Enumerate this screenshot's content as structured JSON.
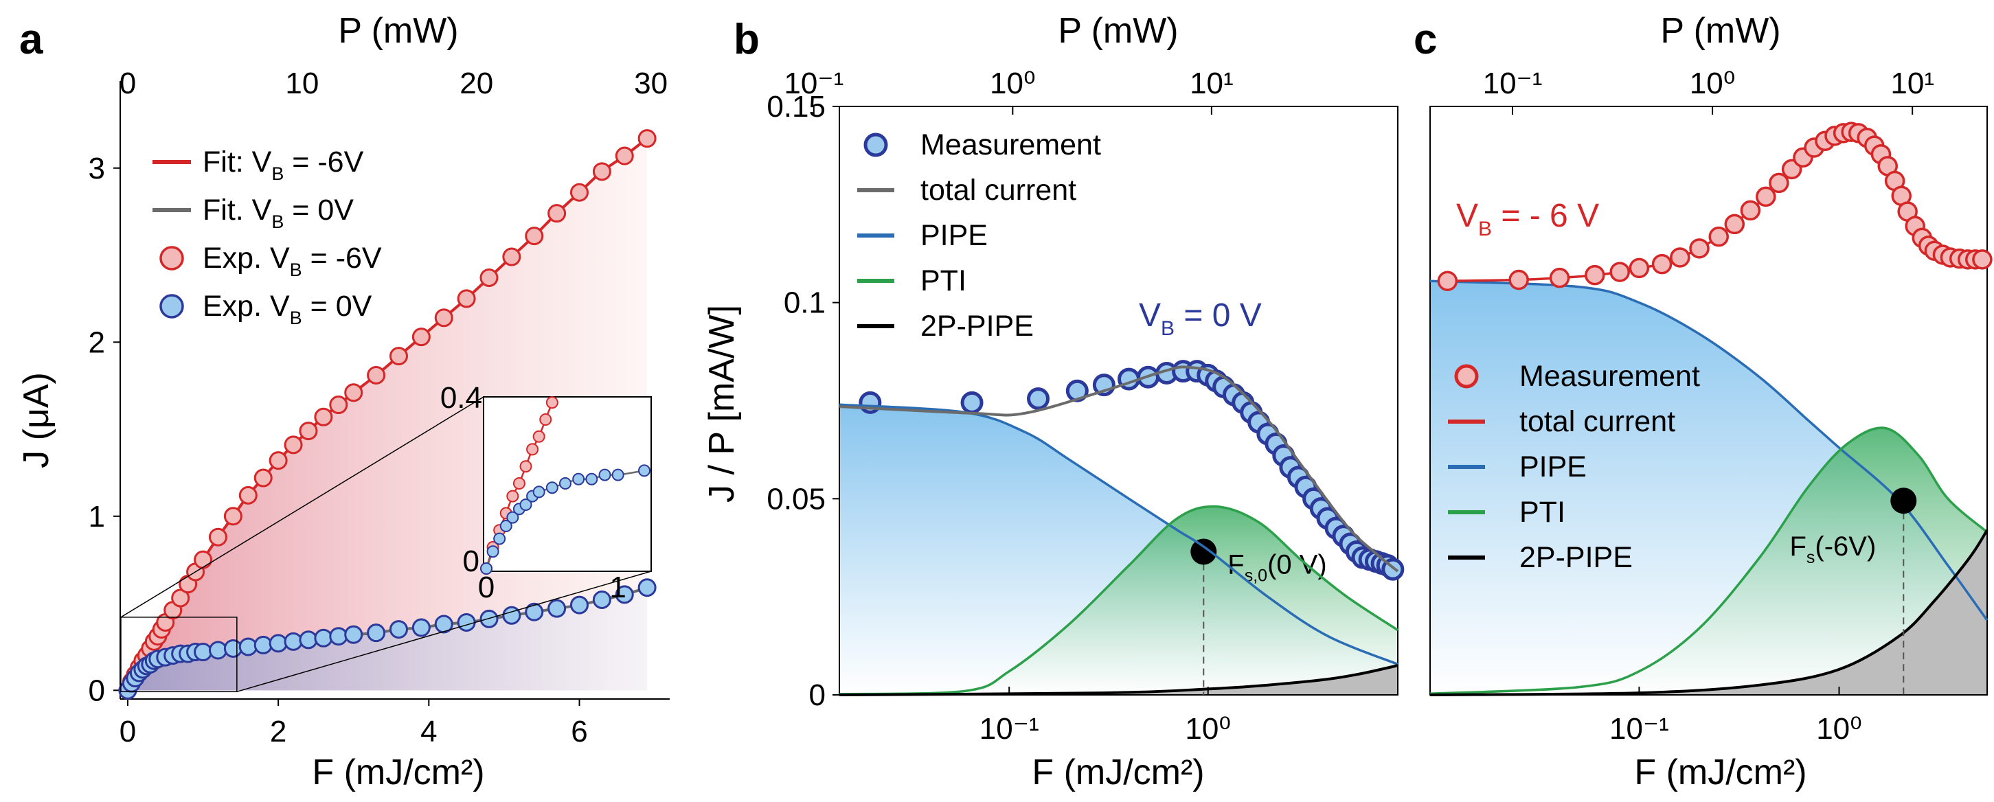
{
  "figure": {
    "panel_letters": [
      "a",
      "b",
      "c"
    ]
  },
  "chart_data": [
    {
      "panel": "a",
      "type": "scatter",
      "xlabel": "F (mJ/cm²)",
      "x2label": "P (mW)",
      "ylabel": "J (μA)",
      "xlim": [
        -0.1,
        7.2
      ],
      "ylim": [
        -0.05,
        3.5
      ],
      "x2lim": [
        0,
        30
      ],
      "x_ticks": [
        0,
        2,
        4,
        6
      ],
      "x_tick_labels": [
        "0",
        "2",
        "4",
        "6"
      ],
      "y_ticks": [
        0,
        1,
        2,
        3
      ],
      "y_tick_labels": [
        "0",
        "1",
        "2",
        "3"
      ],
      "x2_ticks": [
        0,
        10,
        20,
        30
      ],
      "x2_tick_labels": [
        "0",
        "10",
        "20",
        "30"
      ],
      "legend_position": "top-left",
      "legend": [
        {
          "label": "Fit: V",
          "sub": "B",
          "tail": " = -6V",
          "kind": "line",
          "color": "#d62728"
        },
        {
          "label": "Fit. V",
          "sub": "B",
          "tail": " = 0V",
          "kind": "line",
          "color": "#6b6b6b"
        },
        {
          "label": "Exp. V",
          "sub": "B",
          "tail": " = -6V",
          "kind": "marker",
          "color": "#d62728",
          "fill": "#f3b9b9"
        },
        {
          "label": "Exp. V",
          "sub": "B",
          "tail": " = 0V",
          "kind": "marker",
          "color": "#2b3a9a",
          "fill": "#9ccaee"
        }
      ],
      "series": [
        {
          "name": "Exp. V_B = -6V",
          "color": "#d62728",
          "fill": "#f3b9b9",
          "x": [
            0,
            0.05,
            0.1,
            0.15,
            0.2,
            0.25,
            0.3,
            0.35,
            0.4,
            0.45,
            0.5,
            0.6,
            0.7,
            0.8,
            0.9,
            1.0,
            1.2,
            1.4,
            1.6,
            1.8,
            2.0,
            2.2,
            2.4,
            2.6,
            2.8,
            3.0,
            3.3,
            3.6,
            3.9,
            4.2,
            4.5,
            4.8,
            5.1,
            5.4,
            5.7,
            6.0,
            6.3,
            6.6,
            6.9
          ],
          "y": [
            0,
            0.05,
            0.09,
            0.13,
            0.17,
            0.2,
            0.24,
            0.28,
            0.31,
            0.35,
            0.39,
            0.46,
            0.53,
            0.61,
            0.68,
            0.75,
            0.88,
            1.0,
            1.12,
            1.22,
            1.32,
            1.41,
            1.49,
            1.57,
            1.64,
            1.71,
            1.81,
            1.92,
            2.03,
            2.14,
            2.25,
            2.37,
            2.49,
            2.61,
            2.74,
            2.86,
            2.98,
            3.07,
            3.17
          ]
        },
        {
          "name": "Exp. V_B = 0V",
          "color": "#2b3a9a",
          "fill": "#9ccaee",
          "x": [
            0,
            0.05,
            0.1,
            0.15,
            0.2,
            0.25,
            0.3,
            0.35,
            0.4,
            0.5,
            0.6,
            0.7,
            0.8,
            0.9,
            1.0,
            1.2,
            1.4,
            1.6,
            1.8,
            2.0,
            2.2,
            2.4,
            2.6,
            2.8,
            3.0,
            3.3,
            3.6,
            3.9,
            4.2,
            4.5,
            4.8,
            5.1,
            5.4,
            5.7,
            6.0,
            6.3,
            6.6,
            6.9
          ],
          "y": [
            0,
            0.04,
            0.07,
            0.1,
            0.12,
            0.14,
            0.15,
            0.17,
            0.18,
            0.19,
            0.2,
            0.21,
            0.21,
            0.22,
            0.22,
            0.23,
            0.24,
            0.25,
            0.26,
            0.27,
            0.28,
            0.29,
            0.3,
            0.31,
            0.32,
            0.33,
            0.35,
            0.36,
            0.38,
            0.39,
            0.41,
            0.43,
            0.45,
            0.47,
            0.49,
            0.52,
            0.55,
            0.59
          ]
        }
      ],
      "inset": {
        "xlim": [
          0,
          1.2
        ],
        "ylim": [
          0,
          0.4
        ],
        "x_tick_labels": [
          "0",
          "1"
        ],
        "y_tick_labels": [
          "0",
          "0.4"
        ],
        "zoom_region": {
          "x": [
            0,
            1.45
          ],
          "y": [
            0,
            0.42
          ]
        }
      }
    },
    {
      "panel": "b",
      "type": "scatter",
      "xscale": "log",
      "xlabel": "F (mJ/cm²)",
      "x2label": "P (mW)",
      "ylabel": "J / P [mA/W]",
      "xlim": [
        0.014,
        9
      ],
      "ylim": [
        0,
        0.15
      ],
      "x_tick_labels": [
        "10⁻¹",
        "10⁰"
      ],
      "y_tick_labels": [
        "0",
        "0.05",
        "0.1",
        "0.15"
      ],
      "x2_tick_labels": [
        "10⁻¹",
        "10⁰",
        "10¹"
      ],
      "legend_position": "top-left",
      "legend": [
        {
          "label": "Measurement",
          "kind": "marker",
          "color": "#2b3a9a",
          "fill": "#9ccaee"
        },
        {
          "label": "total current",
          "kind": "line",
          "color": "#6b6b6b"
        },
        {
          "label": "PIPE",
          "kind": "line",
          "color": "#2a6db5"
        },
        {
          "label": "PTI",
          "kind": "line",
          "color": "#2ca04a"
        },
        {
          "label": "2P-PIPE",
          "kind": "line",
          "color": "#000000"
        }
      ],
      "annotations": [
        {
          "text": "V",
          "sub": "B",
          "tail": " = 0 V",
          "color": "#2b3a9a"
        },
        {
          "text": "F",
          "sub": "s,0",
          "tail": "(0 V)",
          "color": "#000000",
          "marker_at": {
            "x": 0.95,
            "y": 0.0365
          }
        }
      ],
      "series": [
        {
          "name": "Measurement",
          "x": [
            0.02,
            0.065,
            0.14,
            0.22,
            0.3,
            0.4,
            0.5,
            0.62,
            0.75,
            0.88,
            1.0,
            1.1,
            1.2,
            1.35,
            1.5,
            1.65,
            1.8,
            2.0,
            2.2,
            2.4,
            2.6,
            2.85,
            3.1,
            3.4,
            3.7,
            4.0,
            4.4,
            4.8,
            5.2,
            5.6,
            6.0,
            6.5,
            7.0,
            7.5,
            8.0,
            8.5
          ],
          "y": [
            0.0745,
            0.0745,
            0.0755,
            0.0775,
            0.079,
            0.0805,
            0.081,
            0.082,
            0.0825,
            0.0825,
            0.0815,
            0.08,
            0.0785,
            0.0765,
            0.0745,
            0.072,
            0.0695,
            0.0665,
            0.064,
            0.061,
            0.058,
            0.0555,
            0.053,
            0.05,
            0.0475,
            0.045,
            0.0425,
            0.0405,
            0.0385,
            0.0365,
            0.035,
            0.0345,
            0.034,
            0.0335,
            0.033,
            0.032
          ]
        },
        {
          "name": "total current",
          "x": [
            0.014,
            0.065,
            0.12,
            0.3,
            0.6,
            0.8,
            1.2,
            2.0,
            3.0,
            5.0,
            7.0,
            9.0
          ],
          "y": [
            0.0735,
            0.0718,
            0.0718,
            0.0775,
            0.0825,
            0.0835,
            0.081,
            0.07,
            0.058,
            0.043,
            0.036,
            0.0315
          ]
        },
        {
          "name": "PIPE",
          "x": [
            0.014,
            0.06,
            0.12,
            0.2,
            0.4,
            0.7,
            1.0,
            2.0,
            4.0,
            9.0
          ],
          "y": [
            0.074,
            0.072,
            0.067,
            0.06,
            0.05,
            0.042,
            0.037,
            0.025,
            0.015,
            0.0078
          ]
        },
        {
          "name": "PTI",
          "x": [
            0.014,
            0.06,
            0.1,
            0.2,
            0.4,
            0.7,
            1.1,
            1.8,
            3.0,
            5.0,
            9.0
          ],
          "y": [
            0.0002,
            0.001,
            0.006,
            0.018,
            0.033,
            0.045,
            0.048,
            0.044,
            0.034,
            0.025,
            0.0165
          ]
        },
        {
          "name": "2P-PIPE",
          "x": [
            0.014,
            0.3,
            1.0,
            2.0,
            4.0,
            6.0,
            9.0
          ],
          "y": [
            0,
            0.0005,
            0.0015,
            0.0025,
            0.004,
            0.0055,
            0.0075
          ]
        }
      ]
    },
    {
      "panel": "c",
      "type": "scatter",
      "xscale": "log",
      "xlabel": "F (mJ/cm²)",
      "x2label": "P (mW)",
      "xlim": [
        0.009,
        5.5
      ],
      "ylim": [
        0,
        0.15
      ],
      "x_tick_labels": [
        "10⁻¹",
        "10⁰"
      ],
      "x2_tick_labels": [
        "10⁻¹",
        "10⁰",
        "10¹"
      ],
      "legend_position": "center-left",
      "legend": [
        {
          "label": "Measurement",
          "kind": "marker",
          "color": "#d62728",
          "fill": "#f3b9b9"
        },
        {
          "label": "total current",
          "kind": "line",
          "color": "#d62728"
        },
        {
          "label": "PIPE",
          "kind": "line",
          "color": "#2a6db5"
        },
        {
          "label": "PTI",
          "kind": "line",
          "color": "#2ca04a"
        },
        {
          "label": "2P-PIPE",
          "kind": "line",
          "color": "#000000"
        }
      ],
      "annotations": [
        {
          "text": "V",
          "sub": "B",
          "tail": " = - 6 V",
          "color": "#d62728"
        },
        {
          "text": "F",
          "sub": "s",
          "tail": "(-6V)",
          "color": "#000000",
          "marker_at": {
            "x": 2.1,
            "y": 0.0495
          }
        }
      ],
      "series": [
        {
          "name": "Measurement",
          "x": [
            0.011,
            0.025,
            0.04,
            0.06,
            0.08,
            0.1,
            0.13,
            0.16,
            0.2,
            0.25,
            0.3,
            0.36,
            0.43,
            0.5,
            0.58,
            0.66,
            0.75,
            0.85,
            0.95,
            1.05,
            1.15,
            1.25,
            1.38,
            1.5,
            1.62,
            1.75,
            1.9,
            2.05,
            2.2,
            2.4,
            2.6,
            2.8,
            3.0,
            3.3,
            3.6,
            4.0,
            4.4,
            4.8,
            5.2
          ],
          "y": [
            0.1055,
            0.1058,
            0.1063,
            0.107,
            0.1078,
            0.1088,
            0.1098,
            0.1115,
            0.1138,
            0.1168,
            0.12,
            0.1235,
            0.127,
            0.1305,
            0.134,
            0.137,
            0.1395,
            0.1412,
            0.1425,
            0.1432,
            0.1435,
            0.1432,
            0.142,
            0.14,
            0.1378,
            0.1348,
            0.131,
            0.1272,
            0.1232,
            0.1195,
            0.1165,
            0.1145,
            0.1132,
            0.1122,
            0.1115,
            0.1112,
            0.111,
            0.111,
            0.111
          ]
        },
        {
          "name": "total current",
          "x": [
            0.009,
            0.05,
            0.15,
            0.4,
            0.8,
            1.3,
            2.0,
            3.0,
            5.5
          ],
          "y": [
            0.1055,
            0.107,
            0.111,
            0.126,
            0.141,
            0.1435,
            0.125,
            0.1125,
            0.111
          ]
        },
        {
          "name": "PIPE",
          "x": [
            0.009,
            0.05,
            0.1,
            0.2,
            0.4,
            0.7,
            1.0,
            2.0,
            3.5,
            5.5
          ],
          "y": [
            0.1055,
            0.104,
            0.1,
            0.092,
            0.081,
            0.07,
            0.063,
            0.0495,
            0.033,
            0.019
          ]
        },
        {
          "name": "PTI",
          "x": [
            0.009,
            0.05,
            0.1,
            0.2,
            0.4,
            0.7,
            1.1,
            1.7,
            2.5,
            3.5,
            5.5
          ],
          "y": [
            0.0003,
            0.002,
            0.006,
            0.017,
            0.035,
            0.053,
            0.064,
            0.068,
            0.061,
            0.05,
            0.0415
          ]
        },
        {
          "name": "2P-PIPE",
          "x": [
            0.009,
            0.1,
            0.4,
            1.0,
            2.0,
            3.0,
            4.5,
            5.5
          ],
          "y": [
            0,
            0.0005,
            0.0025,
            0.0065,
            0.015,
            0.024,
            0.035,
            0.042
          ]
        }
      ]
    }
  ]
}
